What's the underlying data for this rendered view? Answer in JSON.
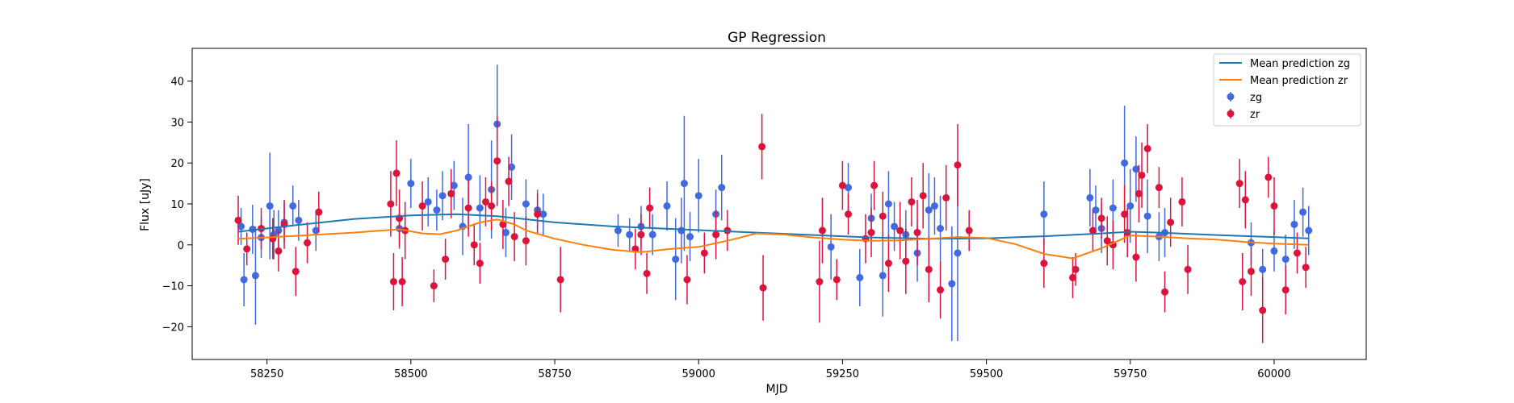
{
  "chart_data": {
    "type": "scatter",
    "title": "GP Regression",
    "xlabel": "MJD",
    "ylabel": "Flux [uJy]",
    "xlim": [
      58120,
      60160
    ],
    "ylim": [
      -28,
      48
    ],
    "xticks": [
      58250,
      58500,
      58750,
      59000,
      59250,
      59500,
      59750,
      60000
    ],
    "yticks": [
      -20,
      -10,
      0,
      10,
      20,
      30,
      40
    ],
    "grid": false,
    "legend_position": "top-right",
    "colors": {
      "zg": "#4169e1",
      "zr": "#dc143c",
      "mean_zg": "#1f77b4",
      "mean_zr": "#ff7f0e"
    },
    "legend": {
      "mean_zg": "Mean prediction zg",
      "mean_zr": "Mean prediction zr",
      "zg": "zg",
      "zr": "zr"
    },
    "mean_zg": {
      "x": [
        58200,
        58300,
        58400,
        58500,
        58580,
        58650,
        58750,
        58850,
        59000,
        59100,
        59200,
        59300,
        59400,
        59500,
        59600,
        59700,
        59750,
        59800,
        59900,
        60000,
        60060
      ],
      "y": [
        3.2,
        4.8,
        6.3,
        7.2,
        7.5,
        7.0,
        5.5,
        4.5,
        3.6,
        3.0,
        2.4,
        1.8,
        1.5,
        1.6,
        2.1,
        2.8,
        3.2,
        3.0,
        2.4,
        1.9,
        1.6
      ]
    },
    "mean_zr": {
      "x": [
        58200,
        58250,
        58300,
        58350,
        58400,
        58450,
        58480,
        58520,
        58550,
        58580,
        58620,
        58650,
        58680,
        58700,
        58750,
        58800,
        58850,
        58900,
        58950,
        59000,
        59050,
        59100,
        59150,
        59200,
        59250,
        59300,
        59350,
        59400,
        59450,
        59500,
        59550,
        59600,
        59650,
        59700,
        59750,
        59800,
        59850,
        59900,
        59950,
        60000,
        60060
      ],
      "y": [
        1.5,
        1.8,
        2.2,
        2.6,
        3.0,
        3.5,
        3.8,
        2.8,
        2.6,
        3.5,
        5.5,
        6.2,
        5.0,
        3.5,
        1.5,
        0.0,
        -1.2,
        -1.8,
        -1.0,
        -0.5,
        1.0,
        2.8,
        2.5,
        1.8,
        1.3,
        1.0,
        1.1,
        1.5,
        1.9,
        1.7,
        0.2,
        -2.2,
        -3.3,
        -0.8,
        2.3,
        2.0,
        1.6,
        1.3,
        0.7,
        0.3,
        0.0
      ]
    },
    "zg": {
      "x": [
        58205,
        58210,
        58225,
        58230,
        58240,
        58255,
        58262,
        58270,
        58280,
        58295,
        58305,
        58335,
        58480,
        58500,
        58530,
        58545,
        58555,
        58575,
        58590,
        58600,
        58620,
        58640,
        58650,
        58665,
        58675,
        58700,
        58720,
        58730,
        58860,
        58880,
        58900,
        58920,
        58945,
        58960,
        58970,
        58975,
        58985,
        59000,
        59030,
        59040,
        59230,
        59260,
        59280,
        59300,
        59320,
        59330,
        59340,
        59360,
        59380,
        59400,
        59410,
        59420,
        59440,
        59450,
        59600,
        59680,
        59690,
        59700,
        59720,
        59740,
        59750,
        59760,
        59780,
        59800,
        59810,
        59960,
        59980,
        60000,
        60020,
        60035,
        60050,
        60060
      ],
      "y": [
        4.5,
        -8.5,
        3.8,
        -7.5,
        1.8,
        9.5,
        2.5,
        3.5,
        5.5,
        9.5,
        6.0,
        3.5,
        4.0,
        15.0,
        10.5,
        8.5,
        12.0,
        14.5,
        4.5,
        16.5,
        9.0,
        13.5,
        29.5,
        3.0,
        19.0,
        10.0,
        8.5,
        7.5,
        3.5,
        2.5,
        4.5,
        2.5,
        9.5,
        -3.5,
        3.5,
        15.0,
        2.0,
        12.0,
        7.5,
        14.0,
        -0.5,
        14.0,
        -8.0,
        6.5,
        -7.5,
        10.0,
        4.5,
        2.5,
        -2.0,
        8.5,
        9.5,
        4.0,
        -9.5,
        -2.0,
        7.5,
        11.5,
        8.5,
        4.0,
        9.0,
        20.0,
        9.5,
        18.5,
        7.0,
        2.0,
        3.0,
        0.5,
        -6.0,
        -1.5,
        -3.5,
        5.0,
        8.0,
        3.5
      ],
      "err": [
        4.5,
        6.5,
        6.0,
        12.0,
        5.0,
        13.0,
        6.0,
        5.0,
        5.0,
        5.0,
        5.0,
        5.0,
        5.0,
        6.0,
        6.0,
        5.0,
        6.0,
        6.0,
        7.0,
        13.0,
        8.0,
        12.0,
        14.5,
        6.0,
        8.0,
        6.0,
        5.0,
        5.0,
        4.0,
        4.0,
        5.0,
        5.0,
        6.0,
        10.0,
        8.0,
        16.5,
        6.0,
        9.0,
        6.0,
        8.0,
        8.0,
        6.0,
        7.0,
        6.0,
        10.0,
        8.0,
        6.0,
        6.0,
        7.0,
        9.0,
        7.0,
        8.0,
        14.0,
        21.5,
        8.0,
        7.0,
        6.0,
        6.0,
        7.0,
        14.0,
        9.0,
        8.0,
        9.0,
        6.0,
        6.0,
        5.0,
        5.0,
        5.0,
        6.0,
        6.0,
        6.0,
        6.0
      ]
    },
    "zr": {
      "x": [
        58200,
        58215,
        58240,
        58260,
        58270,
        58280,
        58300,
        58320,
        58340,
        58465,
        58470,
        58475,
        58480,
        58485,
        58490,
        58520,
        58540,
        58560,
        58570,
        58600,
        58610,
        58620,
        58630,
        58640,
        58650,
        58660,
        58670,
        58680,
        58700,
        58720,
        58760,
        58890,
        58900,
        58910,
        58915,
        58980,
        59010,
        59030,
        59050,
        59110,
        59112,
        59210,
        59215,
        59240,
        59250,
        59260,
        59290,
        59300,
        59305,
        59320,
        59330,
        59350,
        59360,
        59370,
        59380,
        59390,
        59400,
        59420,
        59430,
        59450,
        59470,
        59600,
        59650,
        59655,
        59685,
        59700,
        59710,
        59720,
        59740,
        59745,
        59760,
        59765,
        59770,
        59780,
        59800,
        59810,
        59820,
        59840,
        59850,
        59940,
        59945,
        59950,
        59960,
        59980,
        59990,
        60000,
        60020,
        60040,
        60055
      ],
      "y": [
        6.0,
        -1.0,
        4.0,
        1.5,
        -1.5,
        5.0,
        -6.5,
        0.5,
        8.0,
        10.0,
        -9.0,
        17.5,
        6.5,
        -9.0,
        3.5,
        9.5,
        -10.0,
        -3.5,
        12.5,
        9.0,
        0.0,
        -4.5,
        10.5,
        9.5,
        20.5,
        5.0,
        15.5,
        2.0,
        1.0,
        7.5,
        -8.5,
        -1.0,
        2.5,
        -7.0,
        9.0,
        -8.5,
        -2.0,
        2.5,
        3.5,
        24.0,
        -10.5,
        -9.0,
        3.5,
        -8.5,
        14.5,
        7.5,
        1.5,
        3.0,
        14.5,
        7.0,
        -4.5,
        3.5,
        -4.0,
        10.5,
        3.0,
        12.0,
        -6.0,
        -11.0,
        11.5,
        19.5,
        3.5,
        -4.5,
        -8.0,
        -6.0,
        3.5,
        6.5,
        1.0,
        0.0,
        7.5,
        3.0,
        -3.0,
        12.5,
        17.0,
        23.5,
        14.0,
        -11.5,
        5.5,
        10.5,
        -6.0,
        15.0,
        -9.0,
        11.0,
        -6.5,
        -16.0,
        16.5,
        9.5,
        -11.0,
        -2.0,
        -5.5
      ],
      "err": [
        6.0,
        4.0,
        5.0,
        5.0,
        5.0,
        6.0,
        6.0,
        5.0,
        5.0,
        8.0,
        7.0,
        8.0,
        7.0,
        6.0,
        7.0,
        6.0,
        4.0,
        5.0,
        6.0,
        7.0,
        5.0,
        5.0,
        6.0,
        6.0,
        11.0,
        6.0,
        6.0,
        6.0,
        6.0,
        5.0,
        8.0,
        5.0,
        5.0,
        5.0,
        5.0,
        6.0,
        5.0,
        6.0,
        5.0,
        8.0,
        8.0,
        10.0,
        8.0,
        5.0,
        6.0,
        5.0,
        6.0,
        6.0,
        6.0,
        6.0,
        7.0,
        7.0,
        8.0,
        6.0,
        8.0,
        8.0,
        8.0,
        7.0,
        8.0,
        10.0,
        5.0,
        6.0,
        5.0,
        4.0,
        5.0,
        5.0,
        6.0,
        6.0,
        7.0,
        6.0,
        6.0,
        7.0,
        8.0,
        6.0,
        5.0,
        5.0,
        6.0,
        6.0,
        6.0,
        6.0,
        7.0,
        7.0,
        6.0,
        8.0,
        5.0,
        7.0,
        6.0,
        5.0,
        5.0
      ]
    }
  }
}
